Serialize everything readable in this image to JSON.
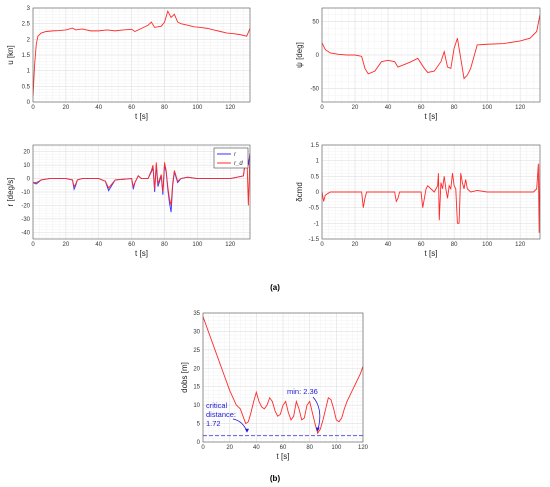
{
  "captions": {
    "a": "(a)",
    "b": "(b)"
  },
  "colors": {
    "series_red": "#ff2a2a",
    "series_blue": "#3333ff",
    "annot_blue": "#1b1bd8",
    "threshold": "#4444dd",
    "grid_minor": "#efefef",
    "grid_major": "#dddddd"
  },
  "chart_data": [
    {
      "id": "u",
      "type": "line",
      "xlabel": "t [s]",
      "ylabel": "u [kn]",
      "xlim": [
        0,
        132
      ],
      "ylim": [
        0,
        3
      ],
      "xticks": [
        0,
        20,
        40,
        60,
        80,
        100,
        120
      ],
      "yticks": [
        0,
        0.5,
        1,
        1.5,
        2,
        2.5,
        3
      ],
      "grid": "minor",
      "series": [
        {
          "color": "#ff2a2a",
          "x": [
            0,
            1,
            2,
            3,
            5,
            8,
            12,
            16,
            20,
            24,
            26,
            30,
            35,
            40,
            45,
            50,
            55,
            60,
            62,
            66,
            70,
            72,
            74,
            78,
            80,
            82,
            84,
            86,
            88,
            90,
            94,
            98,
            102,
            106,
            110,
            114,
            118,
            122,
            126,
            130,
            132
          ],
          "y": [
            0.2,
            1.2,
            1.85,
            2.1,
            2.2,
            2.25,
            2.27,
            2.28,
            2.3,
            2.36,
            2.3,
            2.33,
            2.27,
            2.27,
            2.3,
            2.27,
            2.3,
            2.32,
            2.25,
            2.35,
            2.45,
            2.55,
            2.38,
            2.42,
            2.55,
            2.9,
            2.7,
            2.8,
            2.55,
            2.5,
            2.45,
            2.4,
            2.38,
            2.35,
            2.3,
            2.25,
            2.2,
            2.18,
            2.15,
            2.1,
            2.35
          ]
        }
      ]
    },
    {
      "id": "psi",
      "type": "line",
      "xlabel": "t [s]",
      "ylabel": "ψ [deg]",
      "xlim": [
        0,
        132
      ],
      "ylim": [
        -70,
        70
      ],
      "xticks": [
        0,
        20,
        40,
        60,
        80,
        100,
        120
      ],
      "yticks": [
        -50,
        0,
        50
      ],
      "grid": "minor",
      "series": [
        {
          "color": "#ff2a2a",
          "x": [
            0,
            2,
            5,
            10,
            15,
            20,
            24,
            26,
            28,
            32,
            36,
            40,
            44,
            46,
            50,
            54,
            58,
            62,
            64,
            68,
            72,
            74,
            76,
            78,
            80,
            82,
            84,
            86,
            88,
            90,
            94,
            100,
            110,
            120,
            126,
            130,
            132
          ],
          "y": [
            18,
            8,
            3,
            1,
            0,
            0,
            -2,
            -20,
            -28,
            -24,
            -10,
            -8,
            -10,
            -18,
            -14,
            -10,
            -5,
            -20,
            -26,
            -24,
            -10,
            5,
            -18,
            -20,
            10,
            25,
            -5,
            -35,
            -30,
            -20,
            15,
            16,
            17,
            21,
            25,
            35,
            60
          ]
        }
      ]
    },
    {
      "id": "r",
      "type": "line",
      "xlabel": "t [s]",
      "ylabel": "r [deg/s]",
      "xlim": [
        0,
        132
      ],
      "ylim": [
        -45,
        25
      ],
      "xticks": [
        0,
        20,
        40,
        60,
        80,
        100,
        120
      ],
      "yticks": [
        -40,
        -30,
        -20,
        -10,
        0,
        10,
        20
      ],
      "grid": "minor",
      "legend": "top-right",
      "series": [
        {
          "name": "r",
          "color": "#3333ff",
          "x": [
            0,
            2,
            5,
            10,
            20,
            24,
            25,
            26,
            27,
            30,
            40,
            44,
            46,
            48,
            50,
            60,
            61,
            62,
            64,
            66,
            70,
            72,
            73,
            74,
            75,
            76,
            78,
            79,
            80,
            81,
            82,
            83,
            84,
            85,
            86,
            88,
            90,
            94,
            100,
            120,
            128,
            130,
            131,
            132
          ],
          "y": [
            -3,
            -4,
            -1,
            0,
            0,
            -1,
            -8,
            -5,
            -1,
            0,
            0,
            -2,
            -9,
            -5,
            -1,
            0,
            -8,
            -3,
            2,
            0,
            0,
            5,
            8,
            -10,
            10,
            -6,
            2,
            -12,
            10,
            5,
            -8,
            -18,
            -25,
            -5,
            5,
            -3,
            0,
            1,
            0,
            0,
            2,
            20,
            10,
            19
          ]
        },
        {
          "name": "r_d",
          "color": "#ff2a2a",
          "x": [
            0,
            2,
            5,
            10,
            20,
            24,
            25,
            26,
            27,
            30,
            40,
            44,
            46,
            48,
            50,
            60,
            61,
            62,
            64,
            66,
            70,
            72,
            73,
            74,
            75,
            76,
            78,
            79,
            80,
            81,
            82,
            83,
            84,
            85,
            86,
            88,
            90,
            94,
            100,
            120,
            128,
            130,
            131,
            132
          ],
          "y": [
            -3,
            -3,
            -1,
            0,
            0,
            -1,
            -6,
            -4,
            -1,
            0,
            0,
            -2,
            -7,
            -4,
            -1,
            0,
            -6,
            -3,
            2,
            0,
            0,
            6,
            10,
            -8,
            12,
            -4,
            3,
            -10,
            12,
            6,
            -6,
            -15,
            -20,
            -3,
            6,
            -2,
            0,
            1,
            0,
            0,
            2,
            22,
            -20,
            18
          ]
        }
      ]
    },
    {
      "id": "delta",
      "type": "line",
      "xlabel": "t [s]",
      "ylabel": "δcmd",
      "xlim": [
        0,
        132
      ],
      "ylim": [
        -1.5,
        1.5
      ],
      "xticks": [
        0,
        20,
        40,
        60,
        80,
        100,
        120
      ],
      "yticks": [
        -1.5,
        -1,
        -0.5,
        0,
        0.5,
        1,
        1.5
      ],
      "grid": "minor",
      "series": [
        {
          "color": "#ff2a2a",
          "x": [
            0,
            1,
            2,
            5,
            10,
            20,
            24,
            25,
            26,
            27,
            30,
            40,
            44,
            45,
            46,
            47,
            50,
            60,
            61,
            62,
            63,
            64,
            66,
            68,
            70,
            70.5,
            71,
            72,
            73,
            74,
            75,
            76,
            77,
            78,
            79,
            80,
            81,
            82,
            83,
            84,
            85,
            86,
            87,
            88,
            90,
            94,
            100,
            110,
            120,
            128,
            130,
            131,
            131.5,
            132
          ],
          "y": [
            0,
            -0.3,
            -0.1,
            0,
            0,
            0,
            0,
            -0.5,
            -0.2,
            0,
            0,
            0,
            0,
            -0.3,
            -0.2,
            0,
            0,
            0,
            -0.5,
            -0.2,
            0.1,
            0.2,
            0.1,
            0,
            0.2,
            0.6,
            -0.9,
            0.3,
            0.1,
            0.5,
            0.1,
            -0.2,
            0.2,
            0.1,
            0.6,
            0.2,
            0.1,
            -1.0,
            -1.0,
            0.6,
            0.3,
            0.1,
            0.4,
            0.1,
            0,
            0.05,
            0,
            0,
            0,
            0,
            0.1,
            0.9,
            -1.3,
            0.9
          ]
        }
      ]
    },
    {
      "id": "dobs",
      "type": "line",
      "xlabel": "t [s]",
      "ylabel": "dobs [m]",
      "xlim": [
        0,
        120
      ],
      "ylim": [
        0,
        35
      ],
      "xticks": [
        0,
        20,
        40,
        60,
        80,
        100,
        120
      ],
      "yticks": [
        0,
        5,
        10,
        15,
        20,
        25,
        30,
        35
      ],
      "grid": "minor",
      "threshold": 1.72,
      "annotations": [
        {
          "line1": "critical",
          "line2": "distance:",
          "line3": "1.72",
          "target_x": 33,
          "target_y": 2.5
        },
        {
          "text": "min: 2.36",
          "target_x": 86,
          "target_y": 2.8
        }
      ],
      "series": [
        {
          "color": "#ff2a2a",
          "x": [
            0,
            5,
            10,
            15,
            20,
            25,
            28,
            30,
            32,
            34,
            36,
            38,
            40,
            42,
            44,
            46,
            48,
            50,
            52,
            54,
            56,
            58,
            60,
            62,
            64,
            66,
            68,
            70,
            72,
            74,
            76,
            78,
            80,
            82,
            84,
            86,
            88,
            90,
            92,
            94,
            96,
            98,
            100,
            102,
            104,
            106,
            108,
            110,
            112,
            114,
            116,
            118,
            120
          ],
          "y": [
            34,
            29,
            24,
            19,
            14,
            10,
            9,
            7,
            5,
            5.5,
            8,
            11,
            13.5,
            11,
            9.5,
            9,
            10,
            12,
            11,
            8.5,
            7,
            7.5,
            10,
            11,
            8,
            6,
            7,
            11,
            9,
            6,
            6.5,
            10,
            11,
            8,
            5,
            2.36,
            3.5,
            6,
            9,
            12,
            11.5,
            9,
            6,
            5.5,
            6.5,
            9,
            11,
            12.5,
            14,
            15.5,
            17,
            18.5,
            20.5
          ]
        }
      ]
    }
  ]
}
